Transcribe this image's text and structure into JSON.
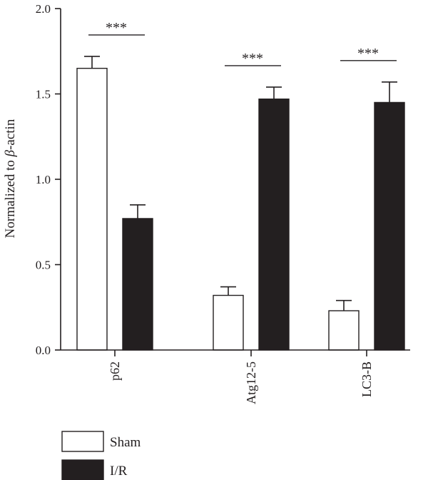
{
  "chart_data": {
    "type": "bar",
    "categories": [
      "p62",
      "Atg12-5",
      "LC3-B"
    ],
    "series": [
      {
        "name": "Sham",
        "color": "#ffffff",
        "values": [
          1.65,
          0.32,
          0.23
        ],
        "errors": [
          0.07,
          0.05,
          0.06
        ]
      },
      {
        "name": "I/R",
        "color": "#231f20",
        "values": [
          0.77,
          1.47,
          1.45
        ],
        "errors": [
          0.08,
          0.07,
          0.12
        ]
      }
    ],
    "ylabel_prefix": "Normalized to ",
    "ylabel_symbol": "β",
    "ylabel_suffix": "-actin",
    "ylim": [
      0,
      2.0
    ],
    "yticks": [
      "0.0",
      "0.5",
      "1.0",
      "1.5",
      "2.0"
    ],
    "significance": [
      "***",
      "***",
      "***"
    ],
    "grid": false,
    "legend_position": "bottom-left"
  }
}
